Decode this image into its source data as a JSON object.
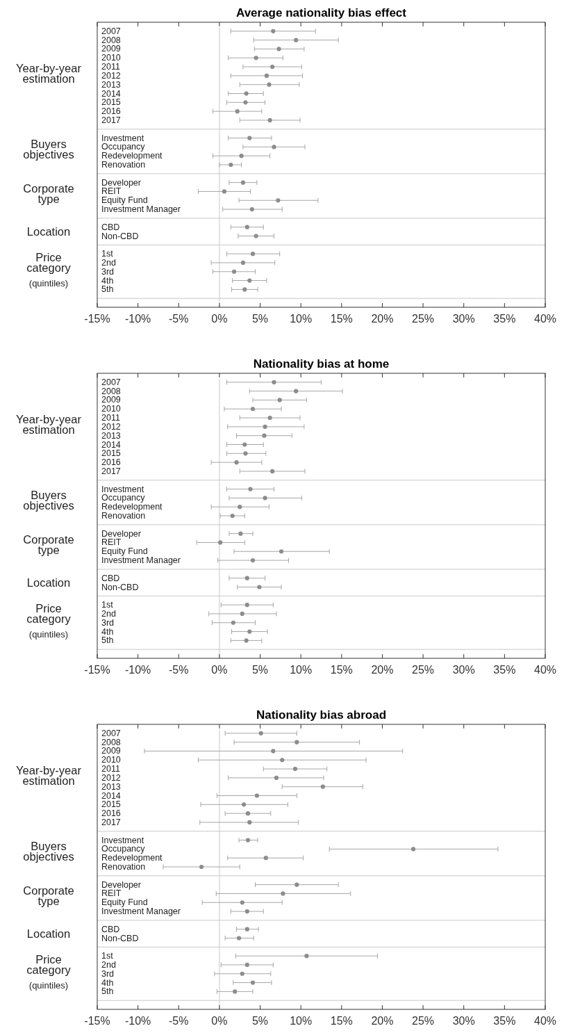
{
  "chart_data": [
    {
      "type": "scatter",
      "orientation": "horizontal",
      "title": "Average nationality bias effect",
      "marker": "circle",
      "color": "#8c8c8c",
      "categories": [
        "2007",
        "2008",
        "2009",
        "2010",
        "2011",
        "2012",
        "2013",
        "2014",
        "2015",
        "2016",
        "2017",
        null,
        "Investment",
        "Occupancy",
        "Redevelopment",
        "Renovation",
        null,
        "Developer",
        "REIT",
        "Equity Fund",
        "Investment Manager",
        null,
        "CBD",
        "Non-CBD",
        null,
        "1st",
        "2nd",
        "3rd",
        "4th",
        "5th",
        null
      ],
      "values": [
        6.6,
        9.4,
        7.3,
        4.5,
        6.5,
        5.8,
        6.1,
        3.3,
        3.2,
        2.2,
        6.2,
        null,
        3.7,
        6.7,
        2.7,
        1.4,
        null,
        2.9,
        0.6,
        7.2,
        4.0,
        null,
        3.4,
        4.5,
        null,
        4.1,
        2.9,
        1.8,
        3.7,
        3.1,
        null
      ],
      "errors": [
        [
          1.4,
          11.8
        ],
        [
          4.2,
          14.6
        ],
        [
          4.3,
          10.4
        ],
        [
          1.1,
          7.8
        ],
        [
          2.9,
          10.1
        ],
        [
          1.4,
          10.2
        ],
        [
          2.5,
          9.8
        ],
        [
          1.1,
          5.4
        ],
        [
          0.9,
          5.6
        ],
        [
          -0.8,
          5.2
        ],
        [
          2.5,
          9.9
        ],
        null,
        [
          1.1,
          6.4
        ],
        [
          2.9,
          10.5
        ],
        [
          -0.8,
          6.2
        ],
        [
          0.0,
          2.7
        ],
        null,
        [
          1.2,
          4.6
        ],
        [
          -2.6,
          3.8
        ],
        [
          2.4,
          12.1
        ],
        [
          0.4,
          7.7
        ],
        null,
        [
          1.4,
          5.4
        ],
        [
          2.3,
          6.7
        ],
        null,
        [
          0.9,
          7.4
        ],
        [
          -1.0,
          6.8
        ],
        [
          -0.8,
          4.4
        ],
        [
          1.6,
          5.8
        ],
        [
          1.5,
          4.7
        ],
        null
      ],
      "xlim": [
        -15,
        40
      ],
      "xticks": [
        {
          "value": -15,
          "label": "-15%"
        },
        {
          "value": -10,
          "label": "-10%"
        },
        {
          "value": -5,
          "label": "-5%"
        },
        {
          "value": 0,
          "label": "0%"
        },
        {
          "value": 5,
          "label": "5%"
        },
        {
          "value": 10,
          "label": "10%"
        },
        {
          "value": 15,
          "label": "15%"
        },
        {
          "value": 20,
          "label": "20%"
        },
        {
          "value": 25,
          "label": "25%"
        },
        {
          "value": 30,
          "label": "30%"
        },
        {
          "value": 35,
          "label": "35%"
        },
        {
          "value": 40,
          "label": "40%"
        }
      ],
      "ref_lines": [
        {
          "axis": "x",
          "value": 0,
          "color": "#c8c8c8"
        }
      ],
      "annotations": [
        "Year-by-year estimation",
        "Buyers objectives",
        "Corporate type",
        "Location",
        "Price category (quintiles)"
      ]
    },
    {
      "type": "scatter",
      "orientation": "horizontal",
      "title": "Nationality bias at home",
      "marker": "circle",
      "color": "#8c8c8c",
      "categories": [
        "2007",
        "2008",
        "2009",
        "2010",
        "2011",
        "2012",
        "2013",
        "2014",
        "2015",
        "2016",
        "2017",
        null,
        "Investment",
        "Occupancy",
        "Redevelopment",
        "Renovation",
        null,
        "Developer",
        "REIT",
        "Equity Fund",
        "Investment Manager",
        null,
        "CBD",
        "Non-CBD",
        null,
        "1st",
        "2nd",
        "3rd",
        "4th",
        "5th",
        null
      ],
      "values": [
        6.7,
        9.4,
        7.4,
        4.1,
        6.2,
        5.6,
        5.5,
        3.1,
        3.2,
        2.1,
        6.5,
        null,
        3.8,
        5.6,
        2.5,
        1.6,
        null,
        2.6,
        0.1,
        7.6,
        4.1,
        null,
        3.4,
        4.9,
        null,
        3.4,
        2.8,
        1.7,
        3.7,
        3.3,
        null
      ],
      "errors": [
        [
          0.9,
          12.5
        ],
        [
          3.7,
          15.1
        ],
        [
          4.1,
          10.7
        ],
        [
          0.6,
          7.6
        ],
        [
          2.5,
          9.9
        ],
        [
          1.0,
          10.4
        ],
        [
          2.1,
          8.9
        ],
        [
          0.9,
          5.4
        ],
        [
          0.9,
          5.7
        ],
        [
          -1.0,
          5.2
        ],
        [
          2.5,
          10.5
        ],
        null,
        [
          0.9,
          6.7
        ],
        [
          1.2,
          10.1
        ],
        [
          -1.0,
          6.1
        ],
        [
          0.1,
          3.1
        ],
        null,
        [
          1.2,
          4.1
        ],
        [
          -2.8,
          3.1
        ],
        [
          1.8,
          13.5
        ],
        [
          -0.2,
          8.5
        ],
        null,
        [
          1.2,
          5.6
        ],
        [
          2.2,
          7.6
        ],
        null,
        [
          0.2,
          6.6
        ],
        [
          -1.3,
          7.0
        ],
        [
          -0.9,
          4.4
        ],
        [
          1.5,
          5.9
        ],
        [
          1.4,
          5.2
        ],
        null
      ],
      "xlim": [
        -15,
        40
      ],
      "xticks": [
        {
          "value": -15,
          "label": "-15%"
        },
        {
          "value": -10,
          "label": "-10%"
        },
        {
          "value": -5,
          "label": "-5%"
        },
        {
          "value": 0,
          "label": "0%"
        },
        {
          "value": 5,
          "label": "5%"
        },
        {
          "value": 10,
          "label": "10%"
        },
        {
          "value": 15,
          "label": "15%"
        },
        {
          "value": 20,
          "label": "20%"
        },
        {
          "value": 25,
          "label": "25%"
        },
        {
          "value": 30,
          "label": "30%"
        },
        {
          "value": 35,
          "label": "35%"
        },
        {
          "value": 40,
          "label": "40%"
        }
      ],
      "ref_lines": [
        {
          "axis": "x",
          "value": 0,
          "color": "#c8c8c8"
        }
      ],
      "annotations": [
        "Year-by-year estimation",
        "Buyers objectives",
        "Corporate type",
        "Location",
        "Price category (quintiles)"
      ]
    },
    {
      "type": "scatter",
      "orientation": "horizontal",
      "title": "Nationality bias abroad",
      "marker": "circle",
      "color": "#8c8c8c",
      "categories": [
        "2007",
        "2008",
        "2009",
        "2010",
        "2011",
        "2012",
        "2013",
        "2014",
        "2015",
        "2016",
        "2017",
        null,
        "Investment",
        "Occupancy",
        "Redevelopment",
        "Renovation",
        null,
        "Developer",
        "REIT",
        "Equity Fund",
        "Investment Manager",
        null,
        "CBD",
        "Non-CBD",
        null,
        "1st",
        "2nd",
        "3rd",
        "4th",
        "5th",
        null
      ],
      "values": [
        5.1,
        9.5,
        6.6,
        7.7,
        9.3,
        7.0,
        12.7,
        4.6,
        3.0,
        3.5,
        3.7,
        null,
        3.5,
        23.8,
        5.7,
        -2.2,
        null,
        9.5,
        7.8,
        2.8,
        3.4,
        null,
        3.4,
        2.4,
        null,
        10.7,
        3.4,
        2.8,
        4.1,
        1.9,
        null
      ],
      "errors": [
        [
          0.7,
          9.5
        ],
        [
          1.8,
          17.2
        ],
        [
          -9.2,
          22.5
        ],
        [
          -2.6,
          18.0
        ],
        [
          5.4,
          13.2
        ],
        [
          1.1,
          12.8
        ],
        [
          7.7,
          17.6
        ],
        [
          -0.3,
          9.5
        ],
        [
          -2.3,
          8.4
        ],
        [
          0.7,
          6.3
        ],
        [
          -2.4,
          9.7
        ],
        null,
        [
          2.4,
          4.7
        ],
        [
          13.5,
          34.2
        ],
        [
          1.0,
          10.3
        ],
        [
          -6.9,
          2.5
        ],
        null,
        [
          4.4,
          14.6
        ],
        [
          -0.4,
          16.1
        ],
        [
          -2.1,
          7.7
        ],
        [
          1.4,
          5.4
        ],
        null,
        [
          2.1,
          4.8
        ],
        [
          0.7,
          4.2
        ],
        null,
        [
          2.0,
          19.4
        ],
        [
          0.2,
          6.6
        ],
        [
          -0.6,
          6.3
        ],
        [
          1.7,
          6.4
        ],
        [
          -0.3,
          4.1
        ],
        null
      ],
      "xlim": [
        -15,
        40
      ],
      "xticks": [
        {
          "value": -15,
          "label": "-15%"
        },
        {
          "value": -10,
          "label": "-10%"
        },
        {
          "value": -5,
          "label": "-5%"
        },
        {
          "value": 0,
          "label": "0%"
        },
        {
          "value": 5,
          "label": "5%"
        },
        {
          "value": 10,
          "label": "10%"
        },
        {
          "value": 15,
          "label": "15%"
        },
        {
          "value": 20,
          "label": "20%"
        },
        {
          "value": 25,
          "label": "25%"
        },
        {
          "value": 30,
          "label": "30%"
        },
        {
          "value": 35,
          "label": "35%"
        },
        {
          "value": 40,
          "label": "40%"
        }
      ],
      "ref_lines": [
        {
          "axis": "x",
          "value": 0,
          "color": "#c8c8c8"
        }
      ],
      "annotations": [
        "Year-by-year estimation",
        "Buyers objectives",
        "Corporate type",
        "Location",
        "Price category (quintiles)"
      ]
    }
  ]
}
